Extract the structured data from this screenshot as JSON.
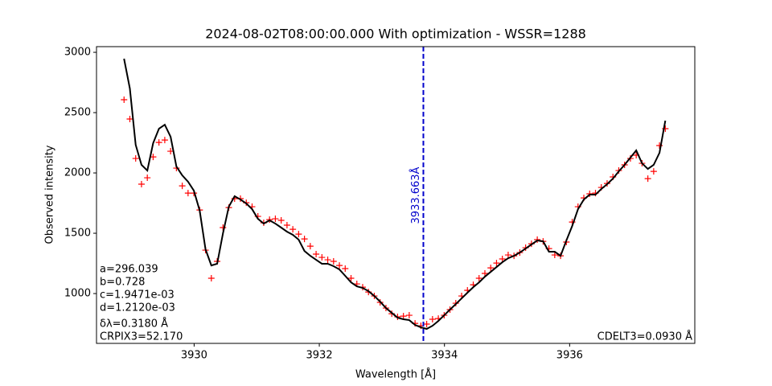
{
  "chart_data": {
    "type": "line",
    "title": "2024-08-02T08:00:00.000 With optimization - WSSR=1288",
    "x_label": "Wavelength [Å]",
    "y_label": "Observed intensity",
    "x": [
      3928.88,
      3928.973,
      3929.066,
      3929.159,
      3929.252,
      3929.345,
      3929.438,
      3929.531,
      3929.624,
      3929.717,
      3929.81,
      3929.903,
      3929.996,
      3930.089,
      3930.182,
      3930.275,
      3930.368,
      3930.461,
      3930.554,
      3930.647,
      3930.74,
      3930.833,
      3930.926,
      3931.019,
      3931.112,
      3931.205,
      3931.298,
      3931.391,
      3931.484,
      3931.577,
      3931.67,
      3931.763,
      3931.856,
      3931.949,
      3932.042,
      3932.135,
      3932.228,
      3932.321,
      3932.414,
      3932.507,
      3932.6,
      3932.693,
      3932.786,
      3932.879,
      3932.972,
      3933.065,
      3933.158,
      3933.251,
      3933.344,
      3933.437,
      3933.53,
      3933.623,
      3933.716,
      3933.809,
      3933.902,
      3933.995,
      3934.088,
      3934.181,
      3934.274,
      3934.367,
      3934.46,
      3934.553,
      3934.646,
      3934.739,
      3934.832,
      3934.925,
      3935.018,
      3935.111,
      3935.204,
      3935.297,
      3935.39,
      3935.483,
      3935.576,
      3935.669,
      3935.762,
      3935.855,
      3935.948,
      3936.041,
      3936.134,
      3936.227,
      3936.32,
      3936.413,
      3936.506,
      3936.599,
      3936.692,
      3936.785,
      3936.878,
      3936.971,
      3937.064,
      3937.157,
      3937.25,
      3937.343,
      3937.436,
      3937.529
    ],
    "series": [
      {
        "color": "#ff0000",
        "marker": "+",
        "values": [
          2607,
          2447,
          2120,
          1907,
          1960,
          2133,
          2253,
          2273,
          2180,
          2040,
          1893,
          1833,
          1833,
          1693,
          1360,
          1127,
          1267,
          1547,
          1713,
          1787,
          1787,
          1753,
          1720,
          1640,
          1587,
          1613,
          1620,
          1607,
          1567,
          1533,
          1493,
          1453,
          1393,
          1327,
          1300,
          1280,
          1267,
          1233,
          1207,
          1127,
          1080,
          1053,
          1013,
          980,
          927,
          880,
          833,
          807,
          813,
          820,
          753,
          733,
          747,
          787,
          793,
          820,
          867,
          920,
          980,
          1027,
          1073,
          1127,
          1167,
          1213,
          1253,
          1287,
          1320,
          1313,
          1340,
          1380,
          1413,
          1447,
          1433,
          1373,
          1320,
          1313,
          1427,
          1593,
          1720,
          1793,
          1827,
          1833,
          1880,
          1913,
          1967,
          2020,
          2067,
          2120,
          2147,
          2080,
          1953,
          2013,
          2227,
          2367
        ]
      },
      {
        "color": "#000000",
        "marker": "line",
        "values": [
          2947,
          2700,
          2233,
          2067,
          2020,
          2247,
          2367,
          2400,
          2300,
          2053,
          1980,
          1927,
          1853,
          1687,
          1367,
          1233,
          1247,
          1500,
          1720,
          1807,
          1780,
          1747,
          1700,
          1620,
          1580,
          1607,
          1580,
          1547,
          1513,
          1487,
          1447,
          1353,
          1313,
          1280,
          1247,
          1247,
          1227,
          1200,
          1147,
          1093,
          1060,
          1047,
          1020,
          980,
          933,
          880,
          840,
          800,
          787,
          780,
          740,
          720,
          707,
          733,
          773,
          820,
          867,
          913,
          960,
          1007,
          1053,
          1093,
          1140,
          1180,
          1220,
          1260,
          1293,
          1313,
          1340,
          1373,
          1407,
          1440,
          1433,
          1347,
          1347,
          1313,
          1440,
          1560,
          1700,
          1780,
          1820,
          1820,
          1867,
          1907,
          1953,
          2013,
          2067,
          2127,
          2187,
          2080,
          2033,
          2067,
          2167,
          2433
        ]
      }
    ],
    "xlim": [
      3928.44,
      3938.0
    ],
    "xticks": [
      3930,
      3932,
      3934,
      3936
    ],
    "ylim": [
      587,
      3047
    ],
    "yticks": [
      1000,
      1500,
      2000,
      2500,
      3000
    ],
    "vline": {
      "value": 3933.663,
      "label": "3933.663Å",
      "color": "#0000cc"
    },
    "annotations_left": [
      "a=296.039",
      "b=0.728",
      "c=1.9471e-03",
      "d=1.2120e-03",
      "δλ=0.3180 Å",
      "CRPIX3=52.170"
    ],
    "annotation_right": "CDELT3=0.0930 Å"
  }
}
